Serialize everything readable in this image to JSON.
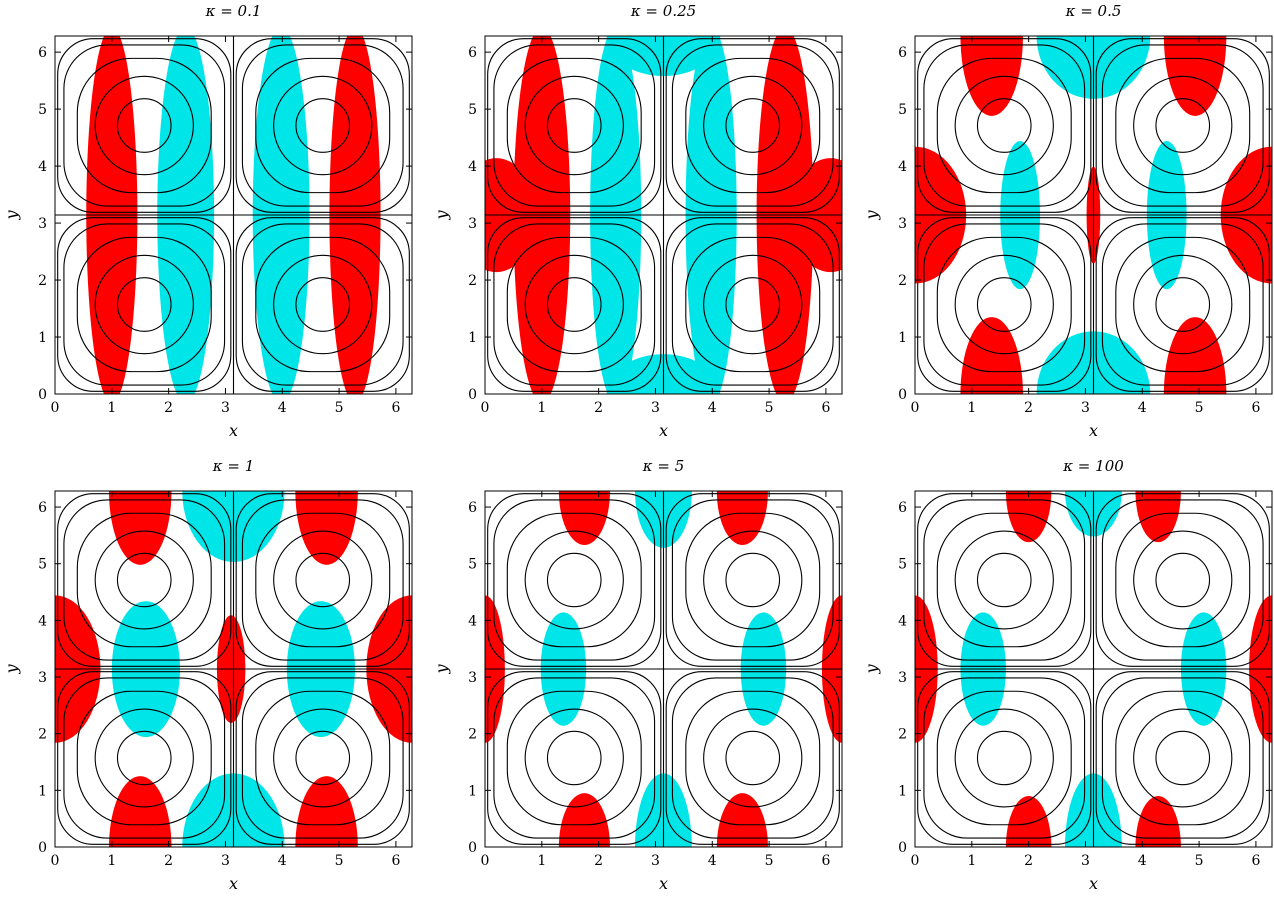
{
  "chart_data": [
    {
      "type": "contour",
      "title": "κ = 0.1",
      "xlabel": "x",
      "ylabel": "y",
      "xlim": [
        0,
        6.2832
      ],
      "ylim": [
        0,
        6.2832
      ],
      "xticks": [
        "0",
        "1",
        "2",
        "3",
        "4",
        "5",
        "6"
      ],
      "yticks": [
        "0",
        "1",
        "2",
        "3",
        "4",
        "5",
        "6"
      ],
      "positive_color": "#ff0000",
      "negative_color": "#00e5e8",
      "kappa": 0.1,
      "regions": [
        {
          "sign": "positive",
          "cx": 1.0,
          "cy": 3.14,
          "rx": 0.45,
          "ry": 3.3
        },
        {
          "sign": "positive",
          "cx": 5.28,
          "cy": 3.14,
          "rx": 0.45,
          "ry": 3.3
        },
        {
          "sign": "negative",
          "cx": 2.3,
          "cy": 3.14,
          "rx": 0.5,
          "ry": 3.3
        },
        {
          "sign": "negative",
          "cx": 3.98,
          "cy": 3.14,
          "rx": 0.5,
          "ry": 3.3
        }
      ]
    },
    {
      "type": "contour",
      "title": "κ = 0.25",
      "xlabel": "x",
      "ylabel": "y",
      "xlim": [
        0,
        6.2832
      ],
      "ylim": [
        0,
        6.2832
      ],
      "xticks": [
        "0",
        "1",
        "2",
        "3",
        "4",
        "5",
        "6"
      ],
      "yticks": [
        "0",
        "1",
        "2",
        "3",
        "4",
        "5",
        "6"
      ],
      "positive_color": "#ff0000",
      "negative_color": "#00e5e8",
      "kappa": 0.25,
      "regions": [
        {
          "sign": "positive",
          "cx": 1.0,
          "cy": 3.14,
          "rx": 0.5,
          "ry": 3.3
        },
        {
          "sign": "positive",
          "cx": 5.28,
          "cy": 3.14,
          "rx": 0.5,
          "ry": 3.3
        },
        {
          "sign": "positive",
          "cx": 0.2,
          "cy": 3.14,
          "rx": 0.7,
          "ry": 1.0
        },
        {
          "sign": "positive",
          "cx": 6.08,
          "cy": 3.14,
          "rx": 0.7,
          "ry": 1.0
        },
        {
          "sign": "negative",
          "cx": 2.3,
          "cy": 3.14,
          "rx": 0.45,
          "ry": 3.3
        },
        {
          "sign": "negative",
          "cx": 3.98,
          "cy": 3.14,
          "rx": 0.45,
          "ry": 3.3
        },
        {
          "sign": "negative",
          "cx": 3.14,
          "cy": 0.0,
          "rx": 1.0,
          "ry": 0.7
        },
        {
          "sign": "negative",
          "cx": 3.14,
          "cy": 6.28,
          "rx": 1.0,
          "ry": 0.7
        }
      ]
    },
    {
      "type": "contour",
      "title": "κ = 0.5",
      "xlabel": "x",
      "ylabel": "y",
      "xlim": [
        0,
        6.2832
      ],
      "ylim": [
        0,
        6.2832
      ],
      "xticks": [
        "0",
        "1",
        "2",
        "3",
        "4",
        "5",
        "6"
      ],
      "yticks": [
        "0",
        "1",
        "2",
        "3",
        "4",
        "5",
        "6"
      ],
      "positive_color": "#ff0000",
      "negative_color": "#00e5e8",
      "kappa": 0.5,
      "regions": [
        {
          "sign": "positive",
          "cx": 1.35,
          "cy": 6.28,
          "rx": 0.55,
          "ry": 1.4
        },
        {
          "sign": "positive",
          "cx": 4.93,
          "cy": 6.28,
          "rx": 0.55,
          "ry": 1.4
        },
        {
          "sign": "positive",
          "cx": 1.35,
          "cy": 0.0,
          "rx": 0.55,
          "ry": 1.35
        },
        {
          "sign": "positive",
          "cx": 4.93,
          "cy": 0.0,
          "rx": 0.55,
          "ry": 1.35
        },
        {
          "sign": "positive",
          "cx": 0.0,
          "cy": 3.14,
          "rx": 0.9,
          "ry": 1.2
        },
        {
          "sign": "positive",
          "cx": 6.28,
          "cy": 3.14,
          "rx": 0.9,
          "ry": 1.2
        },
        {
          "sign": "positive",
          "cx": 3.14,
          "cy": 3.14,
          "rx": 0.12,
          "ry": 0.85
        },
        {
          "sign": "negative",
          "cx": 1.85,
          "cy": 3.14,
          "rx": 0.35,
          "ry": 1.3
        },
        {
          "sign": "negative",
          "cx": 4.43,
          "cy": 3.14,
          "rx": 0.35,
          "ry": 1.3
        },
        {
          "sign": "negative",
          "cx": 3.14,
          "cy": 6.28,
          "rx": 1.0,
          "ry": 1.1
        },
        {
          "sign": "negative",
          "cx": 3.14,
          "cy": 0.0,
          "rx": 1.0,
          "ry": 1.1
        }
      ]
    },
    {
      "type": "contour",
      "title": "κ = 1",
      "xlabel": "x",
      "ylabel": "y",
      "xlim": [
        0,
        6.2832
      ],
      "ylim": [
        0,
        6.2832
      ],
      "xticks": [
        "0",
        "1",
        "2",
        "3",
        "4",
        "5",
        "6"
      ],
      "yticks": [
        "0",
        "1",
        "2",
        "3",
        "4",
        "5",
        "6"
      ],
      "positive_color": "#ff0000",
      "negative_color": "#00e5e8",
      "kappa": 1,
      "regions": [
        {
          "sign": "positive",
          "cx": 1.5,
          "cy": 6.28,
          "rx": 0.55,
          "ry": 1.3
        },
        {
          "sign": "positive",
          "cx": 4.78,
          "cy": 6.28,
          "rx": 0.55,
          "ry": 1.3
        },
        {
          "sign": "positive",
          "cx": 1.5,
          "cy": 0.0,
          "rx": 0.55,
          "ry": 1.25
        },
        {
          "sign": "positive",
          "cx": 4.78,
          "cy": 0.0,
          "rx": 0.55,
          "ry": 1.25
        },
        {
          "sign": "positive",
          "cx": 0.0,
          "cy": 3.14,
          "rx": 0.8,
          "ry": 1.3
        },
        {
          "sign": "positive",
          "cx": 6.28,
          "cy": 3.14,
          "rx": 0.8,
          "ry": 1.3
        },
        {
          "sign": "positive",
          "cx": 3.1,
          "cy": 3.14,
          "rx": 0.25,
          "ry": 0.95
        },
        {
          "sign": "negative",
          "cx": 1.6,
          "cy": 3.14,
          "rx": 0.6,
          "ry": 1.2
        },
        {
          "sign": "negative",
          "cx": 4.68,
          "cy": 3.14,
          "rx": 0.6,
          "ry": 1.2
        },
        {
          "sign": "negative",
          "cx": 3.14,
          "cy": 6.28,
          "rx": 0.9,
          "ry": 1.25
        },
        {
          "sign": "negative",
          "cx": 3.14,
          "cy": 0.0,
          "rx": 0.9,
          "ry": 1.3
        }
      ]
    },
    {
      "type": "contour",
      "title": "κ = 5",
      "xlabel": "x",
      "ylabel": "y",
      "xlim": [
        0,
        6.2832
      ],
      "ylim": [
        0,
        6.2832
      ],
      "xticks": [
        "0",
        "1",
        "2",
        "3",
        "4",
        "5",
        "6"
      ],
      "yticks": [
        "0",
        "1",
        "2",
        "3",
        "4",
        "5",
        "6"
      ],
      "positive_color": "#ff0000",
      "negative_color": "#00e5e8",
      "kappa": 5,
      "regions": [
        {
          "sign": "positive",
          "cx": 1.75,
          "cy": 6.28,
          "rx": 0.45,
          "ry": 0.95
        },
        {
          "sign": "positive",
          "cx": 4.53,
          "cy": 6.28,
          "rx": 0.45,
          "ry": 0.95
        },
        {
          "sign": "positive",
          "cx": 1.75,
          "cy": 0.0,
          "rx": 0.45,
          "ry": 0.95
        },
        {
          "sign": "positive",
          "cx": 4.53,
          "cy": 0.0,
          "rx": 0.45,
          "ry": 0.95
        },
        {
          "sign": "positive",
          "cx": 0.0,
          "cy": 3.14,
          "rx": 0.35,
          "ry": 1.3
        },
        {
          "sign": "positive",
          "cx": 6.28,
          "cy": 3.14,
          "rx": 0.35,
          "ry": 1.3
        },
        {
          "sign": "negative",
          "cx": 1.38,
          "cy": 3.14,
          "rx": 0.4,
          "ry": 1.0
        },
        {
          "sign": "negative",
          "cx": 4.9,
          "cy": 3.14,
          "rx": 0.4,
          "ry": 1.0
        },
        {
          "sign": "negative",
          "cx": 3.14,
          "cy": 6.28,
          "rx": 0.5,
          "ry": 1.0
        },
        {
          "sign": "negative",
          "cx": 3.14,
          "cy": 0.0,
          "rx": 0.5,
          "ry": 1.3
        }
      ]
    },
    {
      "type": "contour",
      "title": "κ = 100",
      "xlabel": "x",
      "ylabel": "y",
      "xlim": [
        0,
        6.2832
      ],
      "ylim": [
        0,
        6.2832
      ],
      "xticks": [
        "0",
        "1",
        "2",
        "3",
        "4",
        "5",
        "6"
      ],
      "yticks": [
        "0",
        "1",
        "2",
        "3",
        "4",
        "5",
        "6"
      ],
      "positive_color": "#ff0000",
      "negative_color": "#00e5e8",
      "kappa": 100,
      "regions": [
        {
          "sign": "positive",
          "cx": 2.0,
          "cy": 6.28,
          "rx": 0.4,
          "ry": 0.9
        },
        {
          "sign": "positive",
          "cx": 4.28,
          "cy": 6.28,
          "rx": 0.4,
          "ry": 0.9
        },
        {
          "sign": "positive",
          "cx": 2.0,
          "cy": 0.0,
          "rx": 0.4,
          "ry": 0.9
        },
        {
          "sign": "positive",
          "cx": 4.28,
          "cy": 0.0,
          "rx": 0.4,
          "ry": 0.9
        },
        {
          "sign": "positive",
          "cx": 0.0,
          "cy": 3.14,
          "rx": 0.4,
          "ry": 1.3
        },
        {
          "sign": "positive",
          "cx": 6.28,
          "cy": 3.14,
          "rx": 0.4,
          "ry": 1.3
        },
        {
          "sign": "negative",
          "cx": 1.2,
          "cy": 3.14,
          "rx": 0.4,
          "ry": 1.0
        },
        {
          "sign": "negative",
          "cx": 5.08,
          "cy": 3.14,
          "rx": 0.4,
          "ry": 1.0
        },
        {
          "sign": "negative",
          "cx": 3.14,
          "cy": 6.28,
          "rx": 0.5,
          "ry": 0.8
        },
        {
          "sign": "negative",
          "cx": 3.14,
          "cy": 0.0,
          "rx": 0.5,
          "ry": 1.3
        }
      ]
    }
  ],
  "streamlines": {
    "cell_centers": [
      [
        1.5708,
        1.5708
      ],
      [
        4.7124,
        1.5708
      ],
      [
        1.5708,
        4.7124
      ],
      [
        4.7124,
        4.7124
      ]
    ],
    "levels": [
      0.3,
      0.55,
      0.75,
      0.9,
      0.97
    ]
  }
}
